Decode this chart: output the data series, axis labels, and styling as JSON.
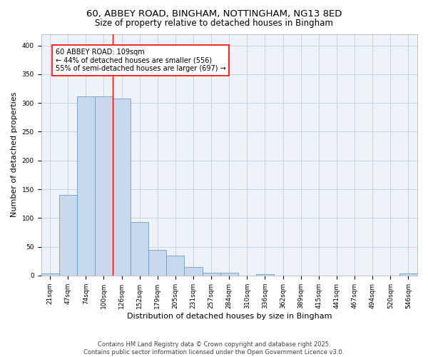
{
  "title1": "60, ABBEY ROAD, BINGHAM, NOTTINGHAM, NG13 8ED",
  "title2": "Size of property relative to detached houses in Bingham",
  "xlabel": "Distribution of detached houses by size in Bingham",
  "ylabel": "Number of detached properties",
  "categories": [
    "21sqm",
    "47sqm",
    "74sqm",
    "100sqm",
    "126sqm",
    "152sqm",
    "179sqm",
    "205sqm",
    "231sqm",
    "257sqm",
    "284sqm",
    "310sqm",
    "336sqm",
    "362sqm",
    "389sqm",
    "415sqm",
    "441sqm",
    "467sqm",
    "494sqm",
    "520sqm",
    "546sqm"
  ],
  "values": [
    3,
    140,
    311,
    311,
    308,
    93,
    45,
    35,
    15,
    5,
    5,
    0,
    2,
    0,
    0,
    0,
    0,
    0,
    0,
    0,
    3
  ],
  "bar_color": "#c9d9ed",
  "bar_edge_color": "#6a9fc8",
  "grid_color": "#c8d4e8",
  "bg_color": "#eef2f9",
  "red_line_x": 3.5,
  "annotation_text": "60 ABBEY ROAD: 109sqm\n← 44% of detached houses are smaller (556)\n55% of semi-detached houses are larger (697) →",
  "annotation_box_color": "white",
  "annotation_box_edge_color": "red",
  "footer1": "Contains HM Land Registry data © Crown copyright and database right 2025.",
  "footer2": "Contains public sector information licensed under the Open Government Licence v3.0.",
  "ylim": [
    0,
    420
  ],
  "yticks": [
    0,
    50,
    100,
    150,
    200,
    250,
    300,
    350,
    400
  ],
  "title1_fontsize": 9.5,
  "title2_fontsize": 8.5,
  "xlabel_fontsize": 8,
  "ylabel_fontsize": 8,
  "tick_fontsize": 6.5,
  "annot_fontsize": 7,
  "footer_fontsize": 6
}
